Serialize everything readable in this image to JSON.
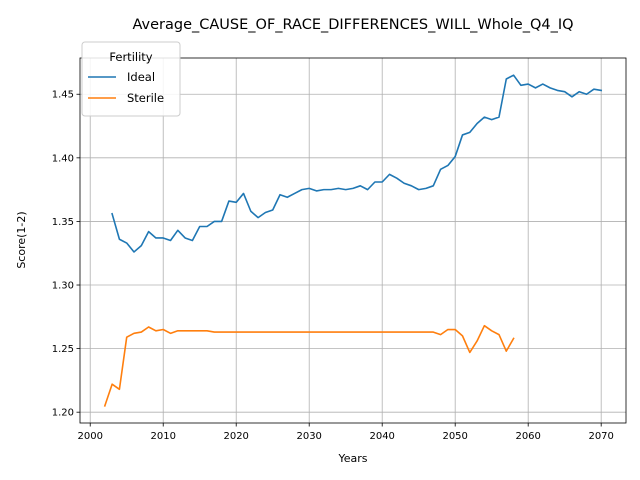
{
  "chart_data": {
    "type": "line",
    "title": "Average_CAUSE_OF_RACE_DIFFERENCES_WILL_Whole_Q4_IQ",
    "xlabel": "Years",
    "ylabel": "Score(1-2)",
    "xlim": [
      1998.6,
      2073.4
    ],
    "ylim": [
      1.1915,
      1.4785
    ],
    "xticks": [
      2000,
      2010,
      2020,
      2030,
      2040,
      2050,
      2060,
      2070
    ],
    "yticks": [
      1.2,
      1.25,
      1.3,
      1.35,
      1.4,
      1.45
    ],
    "ytick_labels": [
      "1.20",
      "1.25",
      "1.30",
      "1.35",
      "1.40",
      "1.45"
    ],
    "grid": true,
    "legend": {
      "title": "Fertility",
      "placement": "top-left"
    },
    "series": [
      {
        "name": "Ideal",
        "color": "#1f77b4",
        "x": [
          2003,
          2004,
          2005,
          2006,
          2007,
          2008,
          2009,
          2010,
          2011,
          2012,
          2013,
          2014,
          2015,
          2016,
          2017,
          2018,
          2019,
          2020,
          2021,
          2022,
          2023,
          2024,
          2025,
          2026,
          2027,
          2028,
          2029,
          2030,
          2031,
          2032,
          2033,
          2034,
          2035,
          2036,
          2037,
          2038,
          2039,
          2040,
          2041,
          2042,
          2043,
          2044,
          2045,
          2046,
          2047,
          2048,
          2049,
          2050,
          2051,
          2052,
          2053,
          2054,
          2055,
          2056,
          2057,
          2058,
          2059,
          2060,
          2061,
          2062,
          2063,
          2064,
          2065,
          2066,
          2067,
          2068,
          2069,
          2070
        ],
        "y": [
          1.356,
          1.336,
          1.333,
          1.326,
          1.331,
          1.342,
          1.337,
          1.337,
          1.335,
          1.343,
          1.337,
          1.335,
          1.346,
          1.346,
          1.35,
          1.35,
          1.366,
          1.365,
          1.372,
          1.358,
          1.353,
          1.357,
          1.359,
          1.371,
          1.369,
          1.372,
          1.375,
          1.376,
          1.374,
          1.375,
          1.375,
          1.376,
          1.375,
          1.376,
          1.378,
          1.375,
          1.381,
          1.381,
          1.387,
          1.384,
          1.38,
          1.378,
          1.375,
          1.376,
          1.378,
          1.391,
          1.394,
          1.401,
          1.418,
          1.42,
          1.427,
          1.432,
          1.43,
          1.432,
          1.462,
          1.465,
          1.457,
          1.458,
          1.455,
          1.458,
          1.455,
          1.453,
          1.452,
          1.448,
          1.452,
          1.45,
          1.454,
          1.453
        ]
      },
      {
        "name": "Sterile",
        "color": "#ff7f0e",
        "x": [
          2002,
          2003,
          2004,
          2005,
          2006,
          2007,
          2008,
          2009,
          2010,
          2011,
          2012,
          2013,
          2014,
          2015,
          2016,
          2017,
          2018,
          2019,
          2020,
          2021,
          2022,
          2023,
          2024,
          2025,
          2026,
          2027,
          2028,
          2029,
          2030,
          2031,
          2032,
          2033,
          2034,
          2035,
          2036,
          2037,
          2038,
          2039,
          2040,
          2041,
          2042,
          2043,
          2044,
          2045,
          2046,
          2047,
          2048,
          2049,
          2050,
          2051,
          2052,
          2053,
          2054,
          2055,
          2056,
          2057,
          2058
        ],
        "y": [
          1.205,
          1.222,
          1.218,
          1.259,
          1.262,
          1.263,
          1.267,
          1.264,
          1.265,
          1.262,
          1.264,
          1.264,
          1.264,
          1.264,
          1.264,
          1.263,
          1.263,
          1.263,
          1.263,
          1.263,
          1.263,
          1.263,
          1.263,
          1.263,
          1.263,
          1.263,
          1.263,
          1.263,
          1.263,
          1.263,
          1.263,
          1.263,
          1.263,
          1.263,
          1.263,
          1.263,
          1.263,
          1.263,
          1.263,
          1.263,
          1.263,
          1.263,
          1.263,
          1.263,
          1.263,
          1.263,
          1.261,
          1.265,
          1.265,
          1.26,
          1.247,
          1.256,
          1.268,
          1.264,
          1.261,
          1.248,
          1.258
        ]
      }
    ]
  }
}
